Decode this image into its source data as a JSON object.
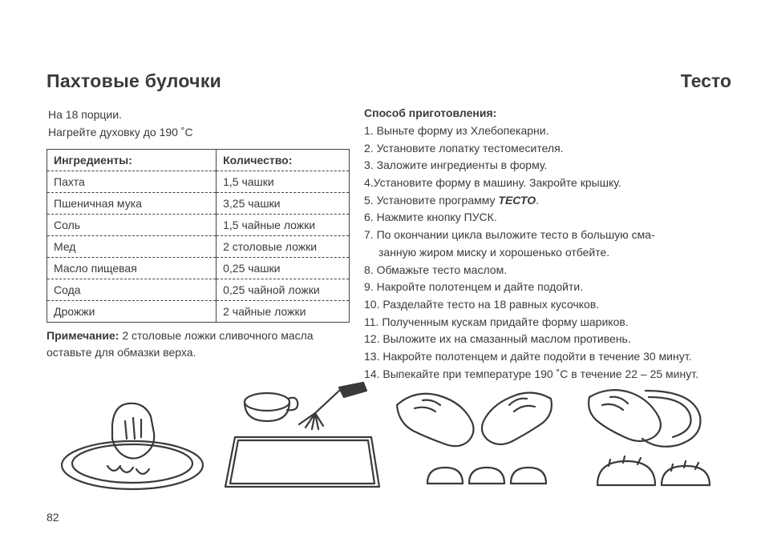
{
  "header": {
    "title_left": "Пахтовые булочки",
    "title_right": "Тесто"
  },
  "intro": {
    "line1": "На 18 порции.",
    "line2": "Нагрейте духовку до 190 ˚С"
  },
  "table": {
    "head_ingredient": "Ингредиенты:",
    "head_quantity": "Количество:",
    "rows": [
      {
        "ing": "Пахта",
        "qty": "1,5 чашки"
      },
      {
        "ing": "Пшеничная мука",
        "qty": "3,25 чашки"
      },
      {
        "ing": "Соль",
        "qty": "1,5 чайные ложки"
      },
      {
        "ing": "Мед",
        "qty": "2 столовые ложки"
      },
      {
        "ing": "Масло пищевая",
        "qty": "0,25 чашки"
      },
      {
        "ing": "Сода",
        "qty": "0,25 чайной ложки"
      },
      {
        "ing": "Дрожжи",
        "qty": "2 чайные ложки"
      }
    ]
  },
  "note": {
    "label": "Примечание:",
    "text": " 2 столовые ложки сливочного масла оставьте для обмазки верха."
  },
  "method": {
    "title": "Способ приготовления:",
    "steps": [
      "1. Выньте форму из Хлебопекарни.",
      "2. Установите лопатку тестомесителя.",
      "3. Заложите ингредиенты в форму.",
      "4.Установите форму в машину. Закройте крышку.",
      "5. Установите программу ",
      "6. Нажмите кнопку ПУСК.",
      "7. По окончании цикла выложите тесто в большую сма-",
      "занную жиром миску и хорошенько отбейте.",
      "8. Обмажьте тесто маслом.",
      "9. Накройте полотенцем и дайте подойти.",
      "10. Разделайте тесто на 18 равных кусочков.",
      "11. Полученным кускам придайте форму шариков.",
      "12. Выложите их на смазанный маслом противень.",
      "13. Накройте полотенцем и дайте подойти в течение 30 минут.",
      "14. Выпекайте при температуре 190 ˚С в течение 22 – 25 минут."
    ],
    "program_word": "ТЕСТО",
    "step5_tail": "."
  },
  "page_number": "82",
  "illustration_stroke": "#3a3a3a"
}
